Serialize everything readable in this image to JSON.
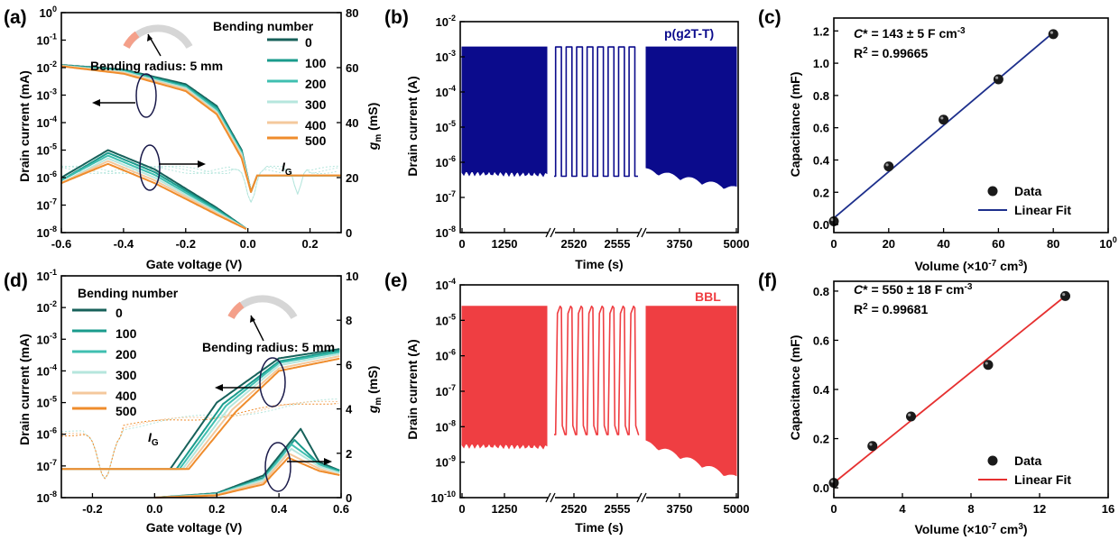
{
  "colors": {
    "axis": "#000000",
    "series": [
      "#17615a",
      "#1a9b8c",
      "#3fbfb0",
      "#b6e6dd",
      "#f4c89c",
      "#ef8c2c"
    ],
    "pg2tt": "#0b0b8c",
    "bbl": "#ef3e42",
    "fit_blue": "#1d2f8c",
    "fit_red": "#e63030",
    "bend_arc": "#d6d6d6",
    "bend_arc_tip": "#f4a08a",
    "ellipse": "#1a1a4a"
  },
  "panel_labels": {
    "a": "(a)",
    "b": "(b)",
    "c": "(c)",
    "d": "(d)",
    "e": "(e)",
    "f": "(f)"
  },
  "panel_a": {
    "xlabel": "Gate voltage (V)",
    "ylabel_left": "Drain current (mA)",
    "ylabel_right": "gm (mS)",
    "xticks": [
      "-0.6",
      "-0.4",
      "-0.2",
      "0.0",
      "0.2"
    ],
    "yticks_left": [
      "10-8",
      "10-7",
      "10-6",
      "10-5",
      "10-4",
      "10-3",
      "10-2",
      "10-1",
      "100"
    ],
    "yticks_right": [
      "0",
      "20",
      "40",
      "60",
      "80"
    ],
    "legend_title": "Bending number",
    "legend": [
      "0",
      "100",
      "200",
      "300",
      "400",
      "500"
    ],
    "radius_text": "Bending radius: 5 mm",
    "ig_text": "IG"
  },
  "panel_b": {
    "xlabel": "Time (s)",
    "ylabel": "Drain current (A)",
    "xticks": [
      "0",
      "1250",
      "2520",
      "2555",
      "3750",
      "5000"
    ],
    "yticks": [
      "10-8",
      "10-7",
      "10-6",
      "10-5",
      "10-4",
      "10-3",
      "10-2"
    ],
    "material": "p(g2T-T)"
  },
  "panel_c": {
    "xlabel": "Volume (×10-7 cm3)",
    "ylabel": "Capacitance (mF)",
    "xticks": [
      "0",
      "20",
      "40",
      "60",
      "80",
      "100"
    ],
    "yticks": [
      "0.0",
      "0.2",
      "0.4",
      "0.6",
      "0.8",
      "1.0",
      "1.2"
    ],
    "cstar": "C* = 143 ± 5 F cm-3",
    "r2": "R2 = 0.99665",
    "legend_data": "Data",
    "legend_fit": "Linear Fit"
  },
  "panel_d": {
    "xlabel": "Gate voltage (V)",
    "ylabel_left": "Drain current (mA)",
    "ylabel_right": "gm (mS)",
    "xticks": [
      "-0.2",
      "0.0",
      "0.2",
      "0.4",
      "0.6"
    ],
    "yticks_left": [
      "10-8",
      "10-7",
      "10-6",
      "10-5",
      "10-4",
      "10-3",
      "10-2",
      "10-1"
    ],
    "yticks_right": [
      "0",
      "2",
      "4",
      "6",
      "8",
      "10"
    ],
    "legend_title": "Bending number",
    "legend": [
      "0",
      "100",
      "200",
      "300",
      "400",
      "500"
    ],
    "radius_text": "Bending radius: 5 mm",
    "ig_text": "IG"
  },
  "panel_e": {
    "xlabel": "Time (s)",
    "ylabel": "Drain current (A)",
    "xticks": [
      "0",
      "1250",
      "2520",
      "2555",
      "3750",
      "5000"
    ],
    "yticks": [
      "10-10",
      "10-9",
      "10-8",
      "10-7",
      "10-6",
      "10-5",
      "10-4"
    ],
    "material": "BBL"
  },
  "panel_f": {
    "xlabel": "Volume (×10-7 cm3)",
    "ylabel": "Capacitance (mF)",
    "xticks": [
      "0",
      "4",
      "8",
      "12",
      "16"
    ],
    "yticks": [
      "0.0",
      "0.2",
      "0.4",
      "0.6",
      "0.8"
    ],
    "cstar": "C* = 550 ± 18 F cm-3",
    "r2": "R2 = 0.99681",
    "legend_data": "Data",
    "legend_fit": "Linear Fit"
  },
  "chart_data": [
    {
      "panel": "a",
      "type": "line",
      "yscale": "log",
      "xlabel": "Gate voltage (V)",
      "ylabel": "Drain current (mA)",
      "y2label": "gm (mS)",
      "xlim": [
        -0.6,
        0.3
      ],
      "ylim": [
        1e-08,
        1
      ],
      "y2lim": [
        0,
        80
      ],
      "legend_title": "Bending number",
      "series": [
        {
          "name": "0",
          "transfer": [
            [
              -0.6,
              0.0125
            ],
            [
              -0.4,
              0.0085
            ],
            [
              -0.2,
              0.0025
            ],
            [
              -0.1,
              0.0004
            ],
            [
              -0.02,
              1e-05
            ],
            [
              0.01,
              3e-07
            ]
          ],
          "gm": [
            [
              -0.6,
              20
            ],
            [
              -0.45,
              30
            ],
            [
              -0.3,
              23
            ],
            [
              -0.1,
              9
            ],
            [
              0.0,
              1
            ]
          ]
        },
        {
          "name": "100",
          "transfer": [
            [
              -0.6,
              0.0122
            ],
            [
              -0.4,
              0.008
            ],
            [
              -0.2,
              0.0022
            ],
            [
              -0.1,
              0.00035
            ],
            [
              -0.02,
              9e-06
            ],
            [
              0.01,
              3e-07
            ]
          ],
          "gm": [
            [
              -0.6,
              19
            ],
            [
              -0.45,
              29
            ],
            [
              -0.3,
              22
            ],
            [
              -0.1,
              8.5
            ],
            [
              0.0,
              1
            ]
          ]
        },
        {
          "name": "200",
          "transfer": [
            [
              -0.6,
              0.012
            ],
            [
              -0.4,
              0.0075
            ],
            [
              -0.2,
              0.002
            ],
            [
              -0.1,
              0.0003
            ],
            [
              -0.02,
              8e-06
            ],
            [
              0.01,
              3e-07
            ]
          ],
          "gm": [
            [
              -0.6,
              19
            ],
            [
              -0.45,
              28
            ],
            [
              -0.3,
              21
            ],
            [
              -0.1,
              8
            ],
            [
              0.0,
              1
            ]
          ]
        },
        {
          "name": "300",
          "transfer": [
            [
              -0.6,
              0.0118
            ],
            [
              -0.4,
              0.007
            ],
            [
              -0.2,
              0.0018
            ],
            [
              -0.1,
              0.00025
            ],
            [
              -0.02,
              7e-06
            ],
            [
              0.01,
              3e-07
            ]
          ],
          "gm": [
            [
              -0.6,
              18
            ],
            [
              -0.45,
              27
            ],
            [
              -0.3,
              20
            ],
            [
              -0.1,
              7.5
            ],
            [
              0.0,
              1
            ]
          ]
        },
        {
          "name": "400",
          "transfer": [
            [
              -0.6,
              0.0115
            ],
            [
              -0.4,
              0.0065
            ],
            [
              -0.2,
              0.0016
            ],
            [
              -0.1,
              0.00022
            ],
            [
              -0.02,
              6e-06
            ],
            [
              0.01,
              3e-07
            ]
          ],
          "gm": [
            [
              -0.6,
              18
            ],
            [
              -0.45,
              26
            ],
            [
              -0.3,
              19
            ],
            [
              -0.1,
              7
            ],
            [
              0.0,
              1
            ]
          ]
        },
        {
          "name": "500",
          "transfer": [
            [
              -0.6,
              0.0112
            ],
            [
              -0.4,
              0.006
            ],
            [
              -0.2,
              0.0014
            ],
            [
              -0.1,
              0.0002
            ],
            [
              -0.02,
              5e-06
            ],
            [
              0.01,
              3e-07
            ]
          ],
          "gm": [
            [
              -0.6,
              18
            ],
            [
              -0.45,
              25
            ],
            [
              -0.3,
              18
            ],
            [
              -0.1,
              6.5
            ],
            [
              0.0,
              1
            ]
          ]
        }
      ]
    },
    {
      "panel": "b",
      "type": "line",
      "yscale": "log",
      "xlabel": "Time (s)",
      "ylabel": "Drain current (A)",
      "material": "p(g2T-T)",
      "ylim": [
        1e-08,
        0.01
      ],
      "x_segments": [
        [
          0,
          1250
        ],
        [
          2520,
          2555
        ],
        [
          3750,
          5000
        ]
      ],
      "on_current": 0.0019,
      "off_current_start": 5e-07,
      "off_current_end": 1.5e-07
    },
    {
      "panel": "c",
      "type": "scatter",
      "xlabel": "Volume (×10-7 cm3)",
      "ylabel": "Capacitance (mF)",
      "xlim": [
        0,
        100
      ],
      "ylim": [
        -0.05,
        1.28
      ],
      "series": [
        {
          "name": "Data",
          "x": [
            0,
            20,
            40,
            60,
            80
          ],
          "y": [
            0.02,
            0.36,
            0.65,
            0.9,
            1.18
          ]
        },
        {
          "name": "Linear Fit",
          "x": [
            0,
            80
          ],
          "y": [
            0.04,
            1.19
          ]
        }
      ],
      "annotations": [
        "C* = 143 ± 5 F cm-3",
        "R2 = 0.99665"
      ]
    },
    {
      "panel": "d",
      "type": "line",
      "yscale": "log",
      "xlabel": "Gate voltage (V)",
      "ylabel": "Drain current (mA)",
      "y2label": "gm (mS)",
      "xlim": [
        -0.3,
        0.6
      ],
      "ylim": [
        1e-08,
        0.1
      ],
      "y2lim": [
        0,
        10
      ],
      "legend_title": "Bending number",
      "series": [
        {
          "name": "0",
          "transfer": [
            [
              -0.3,
              8e-08
            ],
            [
              0.05,
              8e-08
            ],
            [
              0.2,
              1e-05
            ],
            [
              0.4,
              0.00025
            ],
            [
              0.6,
              0.0005
            ]
          ],
          "gm": [
            [
              0.0,
              0
            ],
            [
              0.2,
              0.2
            ],
            [
              0.35,
              1.0
            ],
            [
              0.47,
              3.1
            ],
            [
              0.53,
              1.6
            ],
            [
              0.6,
              1.2
            ]
          ]
        },
        {
          "name": "100",
          "transfer": [
            [
              -0.3,
              8e-08
            ],
            [
              0.07,
              8e-08
            ],
            [
              0.22,
              9e-06
            ],
            [
              0.4,
              0.0002
            ],
            [
              0.6,
              0.00045
            ]
          ],
          "gm": [
            [
              0.0,
              0
            ],
            [
              0.2,
              0.18
            ],
            [
              0.35,
              0.9
            ],
            [
              0.45,
              2.6
            ],
            [
              0.53,
              1.5
            ],
            [
              0.6,
              1.2
            ]
          ]
        },
        {
          "name": "200",
          "transfer": [
            [
              -0.3,
              8e-08
            ],
            [
              0.08,
              8e-08
            ],
            [
              0.23,
              8e-06
            ],
            [
              0.4,
              0.00018
            ],
            [
              0.6,
              0.0004
            ]
          ],
          "gm": [
            [
              0.0,
              0
            ],
            [
              0.2,
              0.16
            ],
            [
              0.35,
              0.85
            ],
            [
              0.44,
              2.4
            ],
            [
              0.53,
              1.5
            ],
            [
              0.6,
              1.1
            ]
          ]
        },
        {
          "name": "300",
          "transfer": [
            [
              -0.3,
              8e-08
            ],
            [
              0.09,
              8e-08
            ],
            [
              0.24,
              7e-06
            ],
            [
              0.4,
              0.00015
            ],
            [
              0.6,
              0.00035
            ]
          ],
          "gm": [
            [
              0.0,
              0
            ],
            [
              0.2,
              0.14
            ],
            [
              0.35,
              0.8
            ],
            [
              0.44,
              2.2
            ],
            [
              0.53,
              1.4
            ],
            [
              0.6,
              1.1
            ]
          ]
        },
        {
          "name": "400",
          "transfer": [
            [
              -0.3,
              8e-08
            ],
            [
              0.1,
              8e-08
            ],
            [
              0.25,
              6e-06
            ],
            [
              0.4,
              0.00012
            ],
            [
              0.6,
              0.0003
            ]
          ],
          "gm": [
            [
              0.0,
              0
            ],
            [
              0.2,
              0.12
            ],
            [
              0.35,
              0.7
            ],
            [
              0.43,
              2.0
            ],
            [
              0.53,
              1.3
            ],
            [
              0.6,
              1.0
            ]
          ]
        },
        {
          "name": "500",
          "transfer": [
            [
              -0.3,
              8e-08
            ],
            [
              0.11,
              8e-08
            ],
            [
              0.26,
              5e-06
            ],
            [
              0.4,
              0.0001
            ],
            [
              0.6,
              0.00025
            ]
          ],
          "gm": [
            [
              0.0,
              0
            ],
            [
              0.2,
              0.1
            ],
            [
              0.35,
              0.6
            ],
            [
              0.43,
              1.8
            ],
            [
              0.53,
              1.2
            ],
            [
              0.6,
              1.0
            ]
          ]
        }
      ]
    },
    {
      "panel": "e",
      "type": "line",
      "yscale": "log",
      "xlabel": "Time (s)",
      "ylabel": "Drain current (A)",
      "material": "BBL",
      "ylim": [
        1e-10,
        0.0001
      ],
      "x_segments": [
        [
          0,
          1250
        ],
        [
          2520,
          2555
        ],
        [
          3750,
          5000
        ]
      ],
      "on_current": 2.5e-05,
      "off_current_start": 3e-09,
      "off_current_end": 3e-10
    },
    {
      "panel": "f",
      "type": "scatter",
      "xlabel": "Volume (×10-7 cm3)",
      "ylabel": "Capacitance (mF)",
      "xlim": [
        0,
        16
      ],
      "ylim": [
        -0.04,
        0.84
      ],
      "series": [
        {
          "name": "Data",
          "x": [
            0,
            2.25,
            4.5,
            9,
            13.5
          ],
          "y": [
            0.02,
            0.17,
            0.29,
            0.5,
            0.78
          ]
        },
        {
          "name": "Linear Fit",
          "x": [
            0,
            13.5
          ],
          "y": [
            0.02,
            0.78
          ]
        }
      ],
      "annotations": [
        "C* = 550 ± 18 F cm-3",
        "R2 = 0.99681"
      ]
    }
  ]
}
